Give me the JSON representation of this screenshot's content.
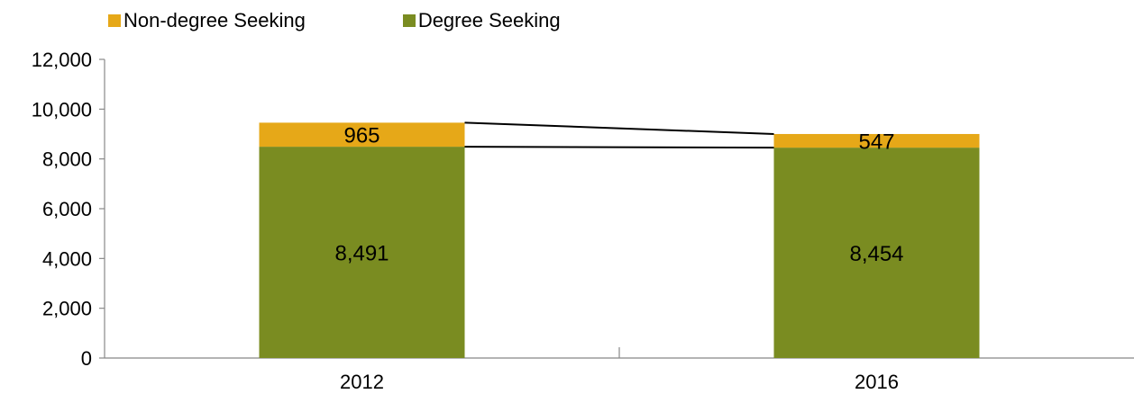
{
  "chart_data": {
    "type": "bar",
    "stacked": true,
    "categories": [
      "2012",
      "2016"
    ],
    "series": [
      {
        "name": "Degree Seeking",
        "values": [
          8491,
          8454
        ],
        "labels": [
          "8,491",
          "8,454"
        ],
        "color": "#7a8c21"
      },
      {
        "name": "Non-degree Seeking",
        "values": [
          965,
          547
        ],
        "labels": [
          "965",
          "547"
        ],
        "color": "#e6a818"
      }
    ],
    "y_ticks": [
      "0",
      "2,000",
      "4,000",
      "6,000",
      "8,000",
      "10,000",
      "12,000"
    ],
    "ylim": [
      0,
      12000
    ],
    "title": "",
    "xlabel": "",
    "ylabel": "",
    "grid": false,
    "legend_position": "top-left",
    "legend_order": [
      "Non-degree Seeking",
      "Degree Seeking"
    ],
    "series_lines": true
  }
}
